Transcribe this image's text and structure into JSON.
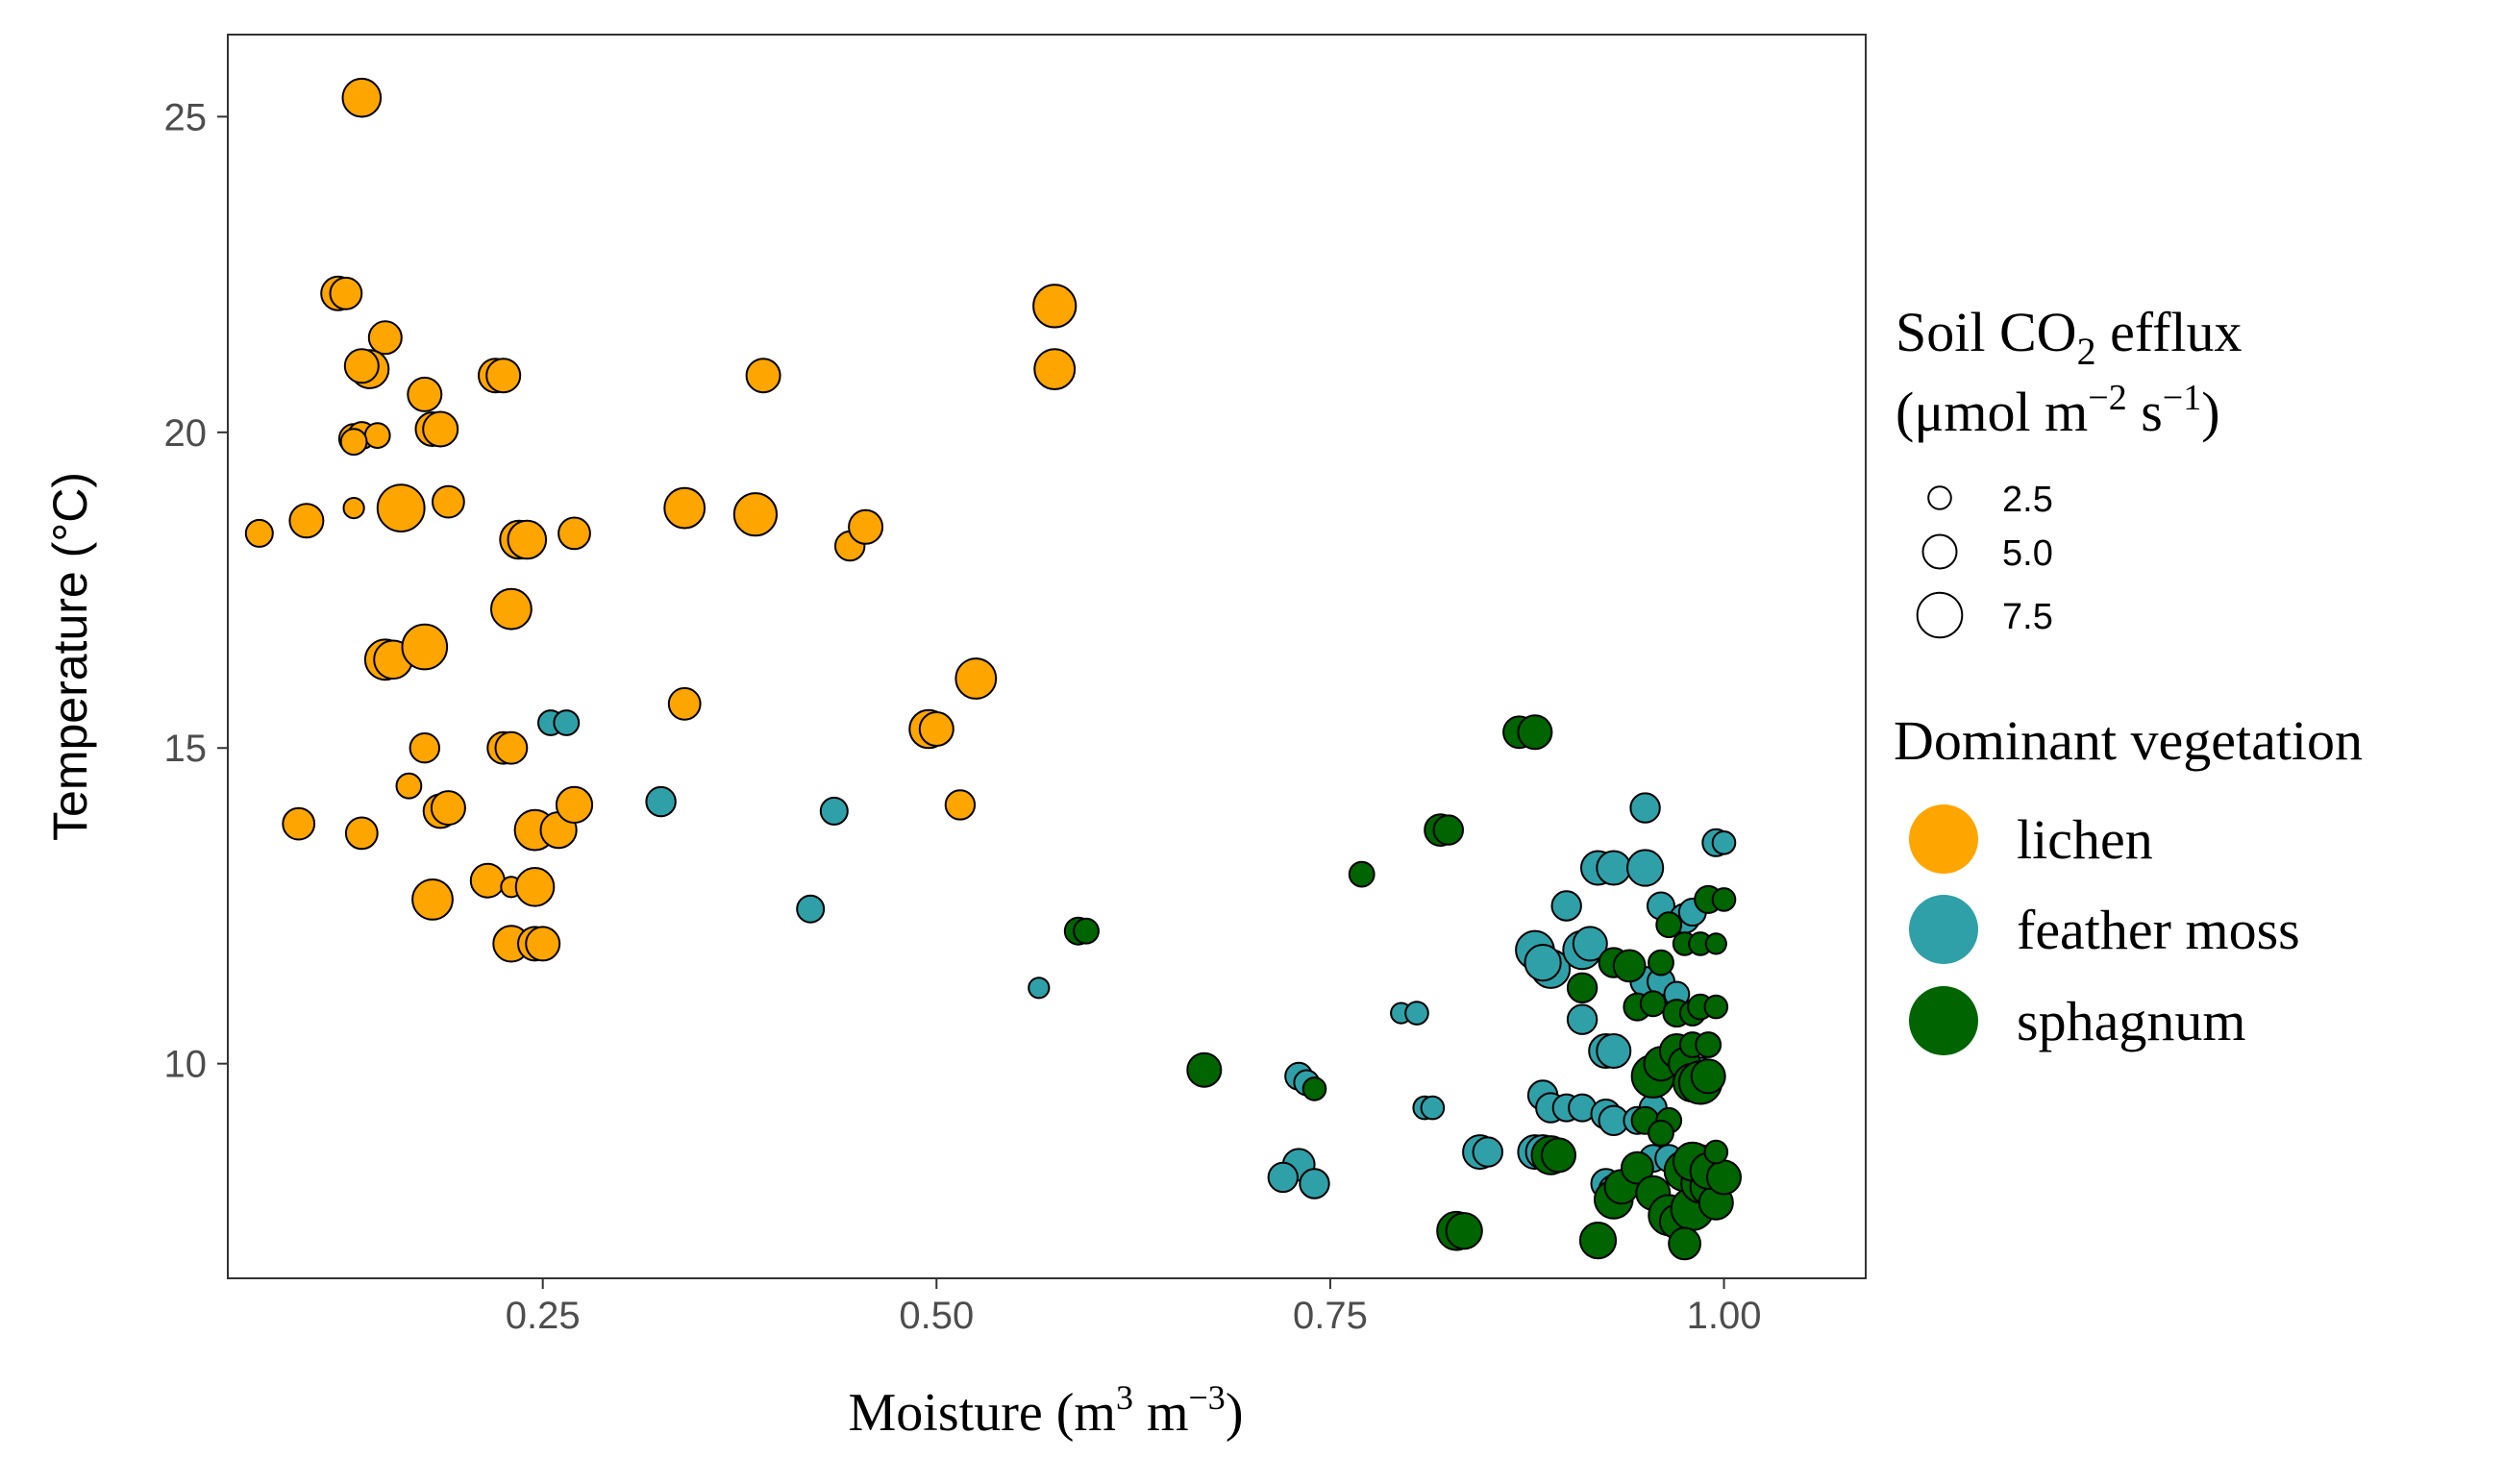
{
  "chart_data": {
    "type": "scatter",
    "xlabel": {
      "main": "Moisture (m",
      "sup1": "3",
      "mid": " m",
      "sup2": "−3",
      "close": ")"
    },
    "ylabel": "Temperature (°C)",
    "xlim": [
      0.05,
      1.09
    ],
    "ylim": [
      6.6,
      26.3
    ],
    "x_ticks": [
      0.25,
      0.5,
      0.75,
      1.0
    ],
    "x_tick_labels": [
      "0.25",
      "0.50",
      "0.75",
      "1.00"
    ],
    "y_ticks": [
      10,
      15,
      20,
      25
    ],
    "y_tick_labels": [
      "10",
      "15",
      "20",
      "25"
    ],
    "grid": false,
    "size_legend": {
      "title_line1": {
        "pre": "Soil CO",
        "sub": "2",
        "post": " efflux"
      },
      "title_line2": {
        "pre": "(μmol m",
        "sup1": "−2",
        "mid": " s",
        "sup2": "−1",
        "post": ")"
      },
      "values": [
        2.5,
        5.0,
        7.5
      ],
      "labels": [
        "2.5",
        "5.0",
        "7.5"
      ]
    },
    "color_legend": {
      "title": "Dominant vegetation",
      "items": [
        {
          "key": "lichen",
          "label": "lichen",
          "color": "#FFA500"
        },
        {
          "key": "feather_moss",
          "label": "feather moss",
          "color": "#2FA0A8"
        },
        {
          "key": "sphagnum",
          "label": "sphagnum",
          "color": "#006400"
        }
      ]
    },
    "series": [
      {
        "name": "lichen",
        "points": [
          [
            0.135,
            25.3,
            6.0
          ],
          [
            0.12,
            22.2,
            5.0
          ],
          [
            0.125,
            22.2,
            4.5
          ],
          [
            0.15,
            21.5,
            4.8
          ],
          [
            0.14,
            21.0,
            6.0
          ],
          [
            0.135,
            21.05,
            5.0
          ],
          [
            0.13,
            19.9,
            4.0
          ],
          [
            0.135,
            19.95,
            3.5
          ],
          [
            0.145,
            19.95,
            3.0
          ],
          [
            0.13,
            19.85,
            3.2
          ],
          [
            0.18,
            20.05,
            5.0
          ],
          [
            0.185,
            20.05,
            5.2
          ],
          [
            0.175,
            20.6,
            5.0
          ],
          [
            0.22,
            20.9,
            5.0
          ],
          [
            0.225,
            20.9,
            5.0
          ],
          [
            0.07,
            18.4,
            3.5
          ],
          [
            0.1,
            18.6,
            5.0
          ],
          [
            0.13,
            18.8,
            2.0
          ],
          [
            0.16,
            18.8,
            8.0
          ],
          [
            0.19,
            18.9,
            4.5
          ],
          [
            0.235,
            18.3,
            6.0
          ],
          [
            0.24,
            18.3,
            6.0
          ],
          [
            0.27,
            18.4,
            4.5
          ],
          [
            0.23,
            17.2,
            6.5
          ],
          [
            0.15,
            16.4,
            6.5
          ],
          [
            0.155,
            16.4,
            6.0
          ],
          [
            0.175,
            16.6,
            7.5
          ],
          [
            0.175,
            15.0,
            4.0
          ],
          [
            0.225,
            15.0,
            4.5
          ],
          [
            0.23,
            15.0,
            4.5
          ],
          [
            0.165,
            14.4,
            3.0
          ],
          [
            0.185,
            14.0,
            5.0
          ],
          [
            0.19,
            14.05,
            5.0
          ],
          [
            0.095,
            13.8,
            4.5
          ],
          [
            0.135,
            13.65,
            4.5
          ],
          [
            0.245,
            13.7,
            6.5
          ],
          [
            0.26,
            13.7,
            5.5
          ],
          [
            0.27,
            14.1,
            5.5
          ],
          [
            0.215,
            12.9,
            5.0
          ],
          [
            0.23,
            12.8,
            2.0
          ],
          [
            0.245,
            12.8,
            6.0
          ],
          [
            0.18,
            12.6,
            6.5
          ],
          [
            0.23,
            11.9,
            5.5
          ],
          [
            0.245,
            11.9,
            5.0
          ],
          [
            0.25,
            11.9,
            5.0
          ],
          [
            0.34,
            18.8,
            6.5
          ],
          [
            0.385,
            18.7,
            7.0
          ],
          [
            0.39,
            20.9,
            5.0
          ],
          [
            0.34,
            15.7,
            4.5
          ],
          [
            0.445,
            18.2,
            4.0
          ],
          [
            0.455,
            18.5,
            5.0
          ],
          [
            0.495,
            15.3,
            6.0
          ],
          [
            0.5,
            15.3,
            5.0
          ],
          [
            0.525,
            16.1,
            6.5
          ],
          [
            0.515,
            14.1,
            4.0
          ],
          [
            0.575,
            22.0,
            7.0
          ],
          [
            0.575,
            21.0,
            6.5
          ]
        ]
      },
      {
        "name": "feather_moss",
        "points": [
          [
            0.255,
            15.4,
            3.0
          ],
          [
            0.265,
            15.4,
            3.0
          ],
          [
            0.325,
            14.15,
            4.0
          ],
          [
            0.435,
            14.0,
            3.5
          ],
          [
            0.42,
            12.45,
            3.5
          ],
          [
            0.565,
            11.2,
            2.0
          ],
          [
            0.795,
            10.8,
            2.0
          ],
          [
            0.805,
            10.8,
            2.5
          ],
          [
            0.81,
            9.3,
            2.5
          ],
          [
            0.815,
            9.3,
            2.5
          ],
          [
            0.73,
            8.4,
            4.5
          ],
          [
            0.72,
            8.2,
            4.0
          ],
          [
            0.74,
            8.1,
            4.0
          ],
          [
            0.73,
            9.8,
            3.5
          ],
          [
            0.735,
            9.7,
            3.0
          ],
          [
            0.845,
            8.6,
            5.0
          ],
          [
            0.85,
            8.6,
            4.0
          ],
          [
            0.88,
            11.8,
            6.0
          ],
          [
            0.89,
            11.5,
            6.0
          ],
          [
            0.885,
            11.6,
            5.5
          ],
          [
            0.9,
            12.5,
            4.0
          ],
          [
            0.91,
            11.8,
            6.0
          ],
          [
            0.915,
            11.9,
            5.0
          ],
          [
            0.92,
            13.1,
            5.0
          ],
          [
            0.93,
            13.1,
            5.0
          ],
          [
            0.95,
            13.1,
            5.5
          ],
          [
            0.95,
            14.05,
            4.0
          ],
          [
            0.96,
            12.5,
            3.5
          ],
          [
            0.975,
            12.3,
            4.0
          ],
          [
            0.98,
            12.4,
            3.5
          ],
          [
            0.91,
            10.7,
            4.0
          ],
          [
            0.925,
            10.2,
            5.0
          ],
          [
            0.93,
            10.2,
            5.0
          ],
          [
            0.95,
            11.3,
            4.0
          ],
          [
            0.96,
            11.3,
            3.5
          ],
          [
            0.97,
            11.1,
            3.0
          ],
          [
            0.885,
            9.5,
            4.0
          ],
          [
            0.89,
            9.3,
            4.0
          ],
          [
            0.9,
            9.3,
            3.5
          ],
          [
            0.91,
            9.3,
            3.5
          ],
          [
            0.925,
            9.2,
            4.0
          ],
          [
            0.93,
            9.1,
            4.0
          ],
          [
            0.945,
            9.1,
            3.5
          ],
          [
            0.955,
            9.3,
            3.5
          ],
          [
            0.88,
            8.6,
            5.0
          ],
          [
            0.885,
            8.6,
            5.0
          ],
          [
            0.925,
            8.1,
            4.0
          ],
          [
            0.93,
            8.0,
            4.0
          ],
          [
            0.945,
            8.4,
            3.0
          ],
          [
            0.955,
            8.5,
            3.5
          ],
          [
            0.965,
            8.5,
            3.5
          ],
          [
            0.985,
            8.5,
            3.5
          ],
          [
            0.985,
            9.9,
            3.0
          ],
          [
            0.995,
            13.5,
            3.5
          ],
          [
            1.0,
            13.5,
            2.5
          ]
        ]
      },
      {
        "name": "sphagnum",
        "points": [
          [
            0.87,
            15.25,
            4.5
          ],
          [
            0.88,
            15.25,
            5.0
          ],
          [
            0.82,
            13.7,
            4.5
          ],
          [
            0.825,
            13.7,
            4.0
          ],
          [
            0.77,
            13.0,
            3.0
          ],
          [
            0.59,
            12.1,
            3.5
          ],
          [
            0.595,
            12.1,
            3.0
          ],
          [
            0.67,
            9.9,
            5.0
          ],
          [
            0.74,
            9.6,
            2.5
          ],
          [
            0.83,
            7.35,
            6.0
          ],
          [
            0.835,
            7.35,
            5.5
          ],
          [
            0.89,
            8.55,
            6.0
          ],
          [
            0.895,
            8.55,
            5.0
          ],
          [
            0.92,
            7.2,
            5.5
          ],
          [
            0.93,
            7.85,
            6.0
          ],
          [
            0.935,
            8.05,
            5.0
          ],
          [
            0.945,
            8.35,
            4.5
          ],
          [
            0.955,
            7.95,
            5.0
          ],
          [
            0.965,
            7.6,
            6.5
          ],
          [
            0.97,
            7.5,
            5.0
          ],
          [
            0.975,
            8.3,
            6.5
          ],
          [
            0.98,
            7.7,
            7.0
          ],
          [
            0.985,
            8.1,
            6.0
          ],
          [
            0.99,
            8.05,
            5.5
          ],
          [
            0.995,
            7.8,
            5.0
          ],
          [
            0.975,
            7.15,
            4.5
          ],
          [
            0.98,
            8.45,
            6.0
          ],
          [
            0.99,
            8.3,
            5.5
          ],
          [
            1.0,
            8.2,
            5.0
          ],
          [
            0.91,
            11.2,
            4.0
          ],
          [
            0.93,
            11.6,
            4.0
          ],
          [
            0.94,
            11.55,
            4.5
          ],
          [
            0.945,
            10.9,
            3.5
          ],
          [
            0.955,
            10.95,
            3.0
          ],
          [
            0.96,
            11.6,
            3.0
          ],
          [
            0.955,
            9.8,
            7.0
          ],
          [
            0.96,
            10.0,
            5.0
          ],
          [
            0.97,
            10.2,
            5.0
          ],
          [
            0.975,
            10.0,
            4.5
          ],
          [
            0.98,
            9.7,
            6.0
          ],
          [
            0.985,
            9.7,
            7.0
          ],
          [
            0.99,
            9.8,
            5.0
          ],
          [
            0.97,
            10.8,
            3.5
          ],
          [
            0.98,
            10.8,
            3.0
          ],
          [
            0.985,
            10.9,
            3.0
          ],
          [
            0.995,
            10.9,
            2.5
          ],
          [
            0.98,
            10.3,
            3.0
          ],
          [
            0.99,
            10.3,
            3.0
          ],
          [
            0.975,
            11.9,
            2.5
          ],
          [
            0.985,
            11.9,
            2.5
          ],
          [
            0.995,
            11.9,
            2.0
          ],
          [
            0.99,
            12.6,
            3.5
          ],
          [
            1.0,
            12.6,
            2.5
          ],
          [
            0.965,
            12.2,
            3.0
          ],
          [
            0.95,
            9.1,
            3.5
          ],
          [
            0.965,
            9.1,
            3.0
          ],
          [
            0.96,
            8.9,
            3.0
          ],
          [
            0.995,
            8.6,
            2.5
          ]
        ]
      }
    ]
  }
}
